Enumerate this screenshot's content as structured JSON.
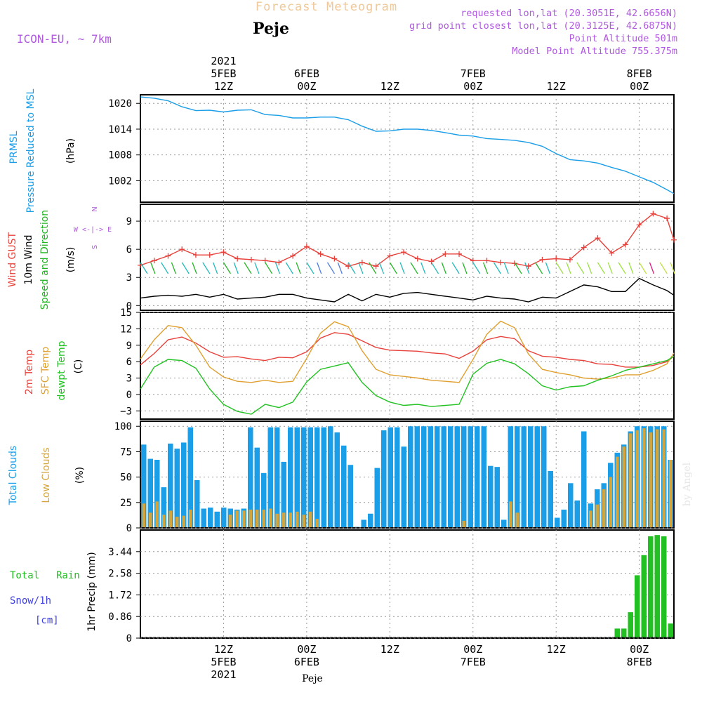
{
  "header": {
    "title": "Forecast Meteogram",
    "location": "Peje",
    "model": "ICON-EU, ~ 7km",
    "requested": "requested lon,lat (20.3051E, 42.6656N)",
    "gridpoint": "grid point closest lon,lat (20.3125E, 42.6875N)",
    "point_alt": "Point Altitude 501m",
    "model_alt": "Model Point Altitude 755.375m"
  },
  "time_axis": {
    "year": "2021",
    "labels": [
      {
        "hour": 12,
        "l1": "12Z",
        "l2": "5FEB",
        "l3": "2021"
      },
      {
        "hour": 24,
        "l1": "00Z",
        "l2": "6FEB",
        "l3": ""
      },
      {
        "hour": 36,
        "l1": "12Z",
        "l2": "",
        "l3": ""
      },
      {
        "hour": 48,
        "l1": "00Z",
        "l2": "7FEB",
        "l3": ""
      },
      {
        "hour": 60,
        "l1": "12Z",
        "l2": "",
        "l3": ""
      },
      {
        "hour": 72,
        "l1": "00Z",
        "l2": "8FEB",
        "l3": ""
      }
    ],
    "top_labels": [
      {
        "hour": 12,
        "l1": "2021",
        "l2": "5FEB",
        "l3": "12Z"
      },
      {
        "hour": 24,
        "l1": "",
        "l2": "6FEB",
        "l3": "00Z"
      },
      {
        "hour": 36,
        "l1": "",
        "l2": "",
        "l3": "12Z"
      },
      {
        "hour": 48,
        "l1": "",
        "l2": "7FEB",
        "l3": "00Z"
      },
      {
        "hour": 60,
        "l1": "",
        "l2": "",
        "l3": "12Z"
      },
      {
        "hour": 72,
        "l1": "",
        "l2": "8FEB",
        "l3": "00Z"
      }
    ],
    "range_hours": [
      0,
      77
    ]
  },
  "footer": {
    "location": "Peje",
    "credit": "by Angel"
  },
  "colors": {
    "pressure": "#1a9ee8",
    "gust": "#e8403a",
    "wind": "#000000",
    "wind_dir": "#21b521",
    "temp2m": "#e8403a",
    "sfc": "#e0a030",
    "dewpt": "#21c221",
    "total_clouds": "#1a9ee8",
    "low_clouds": "#d4a53c",
    "rain": "#22c022",
    "snow": "#3f3fdf",
    "title": "#f0c89a",
    "meta": "#b05adf"
  },
  "panels": {
    "pressure": {
      "label1": "PRMSL",
      "label2": "Pressure Reduced to MSL",
      "unit": "(hPa)",
      "ticks": [
        "1020",
        "1014",
        "1008",
        "1002"
      ]
    },
    "wind": {
      "label_gust": "Wind GUST",
      "label_wind": "10m Wind",
      "label_dir": "Speed and Direction",
      "unit": "(m/s)",
      "ticks": [
        "9",
        "6",
        "3",
        "0"
      ],
      "compass_n": "N",
      "compass_ew": "W <-|-> E",
      "compass_s": "S"
    },
    "temp": {
      "label1": "2m Temp",
      "label2": "SFC Temp",
      "label3": "dewpt Temp",
      "unit": "(C)",
      "ticks": [
        "15",
        "12",
        "9",
        "6",
        "3",
        "0",
        "−3"
      ]
    },
    "clouds": {
      "label1": "Total Clouds",
      "label2": "Low Clouds",
      "unit": "(%)",
      "ticks": [
        "100",
        "75",
        "50",
        "25",
        "0"
      ]
    },
    "precip": {
      "label1": "Total",
      "label1b": "Rain",
      "label2": "Snow/1h",
      "label3": "[cm]",
      "unit": "1hr Precip (mm)",
      "ticks": [
        "3.44",
        "2.58",
        "1.72",
        "0.86",
        "0"
      ]
    }
  },
  "chart_data": [
    {
      "type": "line",
      "ylabel": "(hPa)",
      "ylim": [
        997,
        1022
      ],
      "series": [
        {
          "name": "PRMSL",
          "x": [
            0,
            2,
            4,
            6,
            8,
            10,
            12,
            14,
            16,
            18,
            20,
            22,
            24,
            26,
            28,
            30,
            32,
            34,
            36,
            38,
            40,
            42,
            44,
            46,
            48,
            50,
            52,
            54,
            56,
            58,
            60,
            62,
            64,
            66,
            68,
            70,
            72,
            74,
            76,
            77
          ],
          "values": [
            1021.5,
            1021.2,
            1020.6,
            1019.2,
            1018.3,
            1018.4,
            1018.0,
            1018.4,
            1018.5,
            1017.4,
            1017.2,
            1016.6,
            1016.6,
            1016.8,
            1016.8,
            1016.2,
            1014.7,
            1013.5,
            1013.6,
            1014.0,
            1014.0,
            1013.7,
            1013.2,
            1012.6,
            1012.4,
            1011.8,
            1011.6,
            1011.4,
            1010.9,
            1010.0,
            1008.3,
            1006.9,
            1006.6,
            1006.1,
            1005.1,
            1004.2,
            1002.9,
            1001.6,
            999.9,
            999.0
          ]
        }
      ]
    },
    {
      "type": "line",
      "ylabel": "(m/s)",
      "ylim": [
        -0.5,
        10.8
      ],
      "series": [
        {
          "name": "Wind GUST",
          "x": [
            0,
            2,
            4,
            6,
            8,
            10,
            12,
            14,
            16,
            18,
            20,
            22,
            24,
            26,
            28,
            30,
            32,
            34,
            36,
            38,
            40,
            42,
            44,
            46,
            48,
            50,
            52,
            54,
            56,
            58,
            60,
            62,
            64,
            66,
            68,
            70,
            72,
            74,
            76,
            77
          ],
          "values": [
            4.3,
            4.8,
            5.3,
            6.0,
            5.4,
            5.4,
            5.7,
            5.0,
            4.9,
            4.8,
            4.6,
            5.3,
            6.3,
            5.5,
            5.0,
            4.2,
            4.6,
            4.2,
            5.3,
            5.7,
            5.0,
            4.7,
            5.5,
            5.5,
            4.8,
            4.8,
            4.6,
            4.5,
            4.2,
            4.9,
            5.0,
            4.9,
            6.2,
            7.2,
            5.6,
            6.5,
            8.6,
            9.8,
            9.3,
            7.0
          ]
        },
        {
          "name": "10m Wind",
          "x": [
            0,
            2,
            4,
            6,
            8,
            10,
            12,
            14,
            16,
            18,
            20,
            22,
            24,
            26,
            28,
            30,
            32,
            34,
            36,
            38,
            40,
            42,
            44,
            46,
            48,
            50,
            52,
            54,
            56,
            58,
            60,
            62,
            64,
            66,
            68,
            70,
            72,
            74,
            76,
            77
          ],
          "values": [
            0.8,
            1.0,
            1.1,
            1.0,
            1.2,
            0.9,
            1.2,
            0.7,
            0.8,
            0.9,
            1.2,
            1.2,
            0.8,
            0.6,
            0.4,
            1.2,
            0.5,
            1.2,
            0.9,
            1.3,
            1.4,
            1.2,
            1.0,
            0.8,
            0.6,
            1.0,
            0.8,
            0.7,
            0.4,
            0.9,
            0.8,
            1.5,
            2.2,
            2.0,
            1.5,
            1.5,
            2.9,
            2.2,
            1.6,
            1.1
          ]
        }
      ]
    },
    {
      "type": "line",
      "ylabel": "(C)",
      "ylim": [
        -4.5,
        15
      ],
      "series": [
        {
          "name": "2m Temp",
          "x": [
            0,
            2,
            4,
            6,
            8,
            10,
            12,
            14,
            16,
            18,
            20,
            22,
            24,
            26,
            28,
            30,
            32,
            34,
            36,
            38,
            40,
            42,
            44,
            46,
            48,
            50,
            52,
            54,
            56,
            58,
            60,
            62,
            64,
            66,
            68,
            70,
            72,
            74,
            76,
            77
          ],
          "values": [
            5.4,
            7.5,
            10.0,
            10.5,
            9.4,
            7.8,
            6.8,
            6.9,
            6.5,
            6.2,
            6.8,
            6.7,
            7.8,
            10.3,
            11.3,
            11.0,
            9.8,
            8.6,
            8.1,
            8.0,
            7.9,
            7.6,
            7.4,
            6.6,
            7.9,
            10.0,
            10.6,
            10.2,
            8.0,
            7.0,
            6.8,
            6.4,
            6.2,
            5.6,
            5.5,
            5.0,
            5.0,
            5.3,
            6.0,
            7.0
          ]
        },
        {
          "name": "SFC Temp",
          "x": [
            0,
            2,
            4,
            6,
            8,
            10,
            12,
            14,
            16,
            18,
            20,
            22,
            24,
            26,
            28,
            30,
            32,
            34,
            36,
            38,
            40,
            42,
            44,
            46,
            48,
            50,
            52,
            54,
            56,
            58,
            60,
            62,
            64,
            66,
            68,
            70,
            72,
            74,
            76,
            77
          ],
          "values": [
            6.5,
            10.0,
            12.6,
            12.2,
            9.0,
            5.0,
            3.2,
            2.4,
            2.2,
            2.6,
            2.2,
            2.4,
            6.6,
            11.2,
            13.3,
            12.4,
            8.0,
            4.6,
            3.6,
            3.3,
            3.0,
            2.6,
            2.4,
            2.2,
            6.4,
            11.0,
            13.4,
            12.2,
            7.4,
            4.6,
            4.0,
            3.6,
            3.0,
            2.8,
            3.0,
            3.6,
            3.6,
            4.4,
            5.6,
            7.6
          ]
        },
        {
          "name": "dewpt Temp",
          "x": [
            0,
            2,
            4,
            6,
            8,
            10,
            12,
            14,
            16,
            18,
            20,
            22,
            24,
            26,
            28,
            30,
            32,
            34,
            36,
            38,
            40,
            42,
            44,
            46,
            48,
            50,
            52,
            54,
            56,
            58,
            60,
            62,
            64,
            66,
            68,
            70,
            72,
            74,
            76,
            77
          ],
          "values": [
            1.0,
            5.0,
            6.4,
            6.2,
            4.8,
            1.0,
            -1.8,
            -3.1,
            -3.6,
            -1.8,
            -2.4,
            -1.4,
            2.3,
            4.6,
            5.2,
            5.8,
            2.2,
            -0.2,
            -1.4,
            -2.0,
            -1.8,
            -2.2,
            -2.0,
            -1.8,
            3.7,
            5.7,
            6.4,
            5.6,
            3.8,
            1.6,
            0.8,
            1.4,
            1.6,
            2.6,
            3.4,
            4.4,
            5.0,
            5.6,
            6.2,
            7.0
          ]
        }
      ]
    },
    {
      "type": "bar",
      "ylabel": "(%)",
      "ylim": [
        0,
        105
      ],
      "x_start": 0,
      "x_step": 1,
      "series": [
        {
          "name": "Total Clouds",
          "values": [
            82,
            68,
            67,
            40,
            83,
            78,
            84,
            99,
            47,
            19,
            20,
            16,
            20,
            19,
            18,
            19,
            99,
            79,
            54,
            99,
            99,
            65,
            99,
            99,
            99,
            99,
            99,
            99,
            100,
            94,
            81,
            62,
            1,
            8,
            14,
            59,
            96,
            99,
            99,
            80,
            100,
            100,
            100,
            100,
            100,
            100,
            100,
            100,
            100,
            100,
            100,
            100,
            61,
            60,
            8,
            100,
            100,
            100,
            100,
            100,
            100,
            56,
            10,
            18,
            44,
            27,
            95,
            24,
            38,
            44,
            64,
            74,
            82,
            95,
            100,
            100,
            100,
            100,
            100,
            67
          ]
        },
        {
          "name": "Low Clouds",
          "values": [
            24,
            15,
            26,
            13,
            17,
            11,
            12,
            18,
            0,
            0,
            0,
            0,
            0,
            13,
            17,
            17,
            18,
            18,
            18,
            19,
            14,
            15,
            15,
            16,
            13,
            16,
            9,
            0,
            0,
            0,
            0,
            0,
            0,
            0,
            0,
            0,
            0,
            0,
            0,
            0,
            0,
            0,
            0,
            0,
            0,
            0,
            0,
            0,
            7,
            0,
            0,
            0,
            0,
            0,
            0,
            26,
            15,
            0,
            0,
            0,
            0,
            0,
            0,
            0,
            0,
            0,
            0,
            17,
            23,
            38,
            50,
            70,
            80,
            93,
            96,
            98,
            94,
            97,
            97,
            67
          ]
        }
      ]
    },
    {
      "type": "bar",
      "ylabel": "1hr Precip (mm)",
      "ylim": [
        0,
        4.3
      ],
      "x_start": 0,
      "x_step": 1,
      "series": [
        {
          "name": "Total Rain",
          "values": [
            0,
            0,
            0,
            0,
            0,
            0,
            0,
            0,
            0,
            0,
            0,
            0,
            0,
            0,
            0,
            0,
            0,
            0,
            0,
            0,
            0,
            0,
            0,
            0,
            0,
            0,
            0,
            0,
            0,
            0,
            0,
            0,
            0,
            0,
            0,
            0,
            0,
            0,
            0,
            0,
            0,
            0,
            0,
            0,
            0,
            0,
            0,
            0,
            0,
            0,
            0,
            0,
            0,
            0,
            0,
            0,
            0,
            0,
            0,
            0,
            0,
            0,
            0,
            0,
            0,
            0,
            0,
            0,
            0,
            0,
            0,
            0.38,
            0.38,
            1.03,
            2.5,
            3.3,
            4.05,
            4.1,
            4.05,
            0.58
          ]
        }
      ]
    }
  ]
}
